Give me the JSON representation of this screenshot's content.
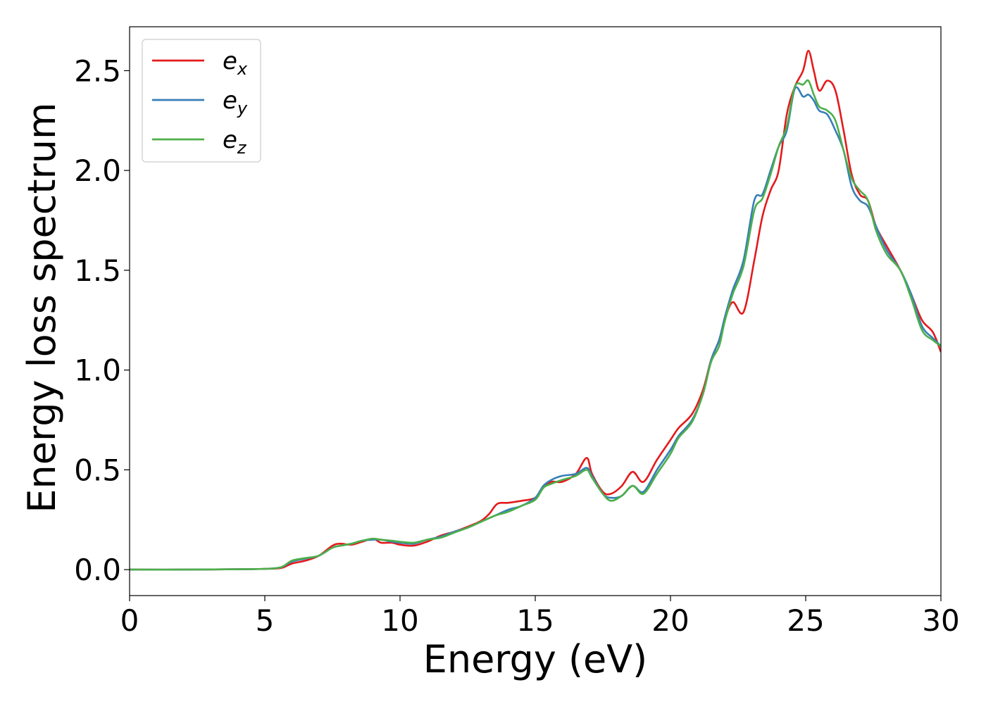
{
  "chart_data": {
    "type": "line",
    "title": "",
    "xlabel": "Energy (eV)",
    "ylabel": "Energy loss spectrum",
    "xlim": [
      0,
      30
    ],
    "ylim": [
      -0.13,
      2.72
    ],
    "xticks": [
      0,
      5,
      10,
      15,
      20,
      25,
      30
    ],
    "xtick_labels": [
      "0",
      "5",
      "10",
      "15",
      "20",
      "25",
      "30"
    ],
    "yticks": [
      0.0,
      0.5,
      1.0,
      1.5,
      2.0,
      2.5
    ],
    "ytick_labels": [
      "0.0",
      "0.5",
      "1.0",
      "1.5",
      "2.0",
      "2.5"
    ],
    "grid": false,
    "legend_position": "top-left",
    "series": [
      {
        "name": "e",
        "subscript": "x",
        "color": "#e41a1c",
        "points": [
          [
            0,
            0
          ],
          [
            2,
            0
          ],
          [
            4,
            0.002
          ],
          [
            5,
            0.004
          ],
          [
            5.6,
            0.008
          ],
          [
            6,
            0.03
          ],
          [
            6.5,
            0.045
          ],
          [
            7,
            0.07
          ],
          [
            7.5,
            0.12
          ],
          [
            7.8,
            0.13
          ],
          [
            8.2,
            0.125
          ],
          [
            8.6,
            0.14
          ],
          [
            9,
            0.155
          ],
          [
            9.3,
            0.135
          ],
          [
            9.7,
            0.135
          ],
          [
            10,
            0.125
          ],
          [
            10.5,
            0.12
          ],
          [
            11,
            0.14
          ],
          [
            11.5,
            0.17
          ],
          [
            12,
            0.19
          ],
          [
            12.5,
            0.215
          ],
          [
            13,
            0.245
          ],
          [
            13.3,
            0.28
          ],
          [
            13.6,
            0.33
          ],
          [
            14,
            0.335
          ],
          [
            14.5,
            0.345
          ],
          [
            15,
            0.36
          ],
          [
            15.3,
            0.41
          ],
          [
            15.6,
            0.44
          ],
          [
            16,
            0.44
          ],
          [
            16.5,
            0.48
          ],
          [
            16.9,
            0.56
          ],
          [
            17.1,
            0.48
          ],
          [
            17.5,
            0.39
          ],
          [
            17.8,
            0.38
          ],
          [
            18.2,
            0.42
          ],
          [
            18.6,
            0.49
          ],
          [
            19,
            0.44
          ],
          [
            19.5,
            0.55
          ],
          [
            20,
            0.65
          ],
          [
            20.3,
            0.71
          ],
          [
            20.8,
            0.78
          ],
          [
            21.2,
            0.9
          ],
          [
            21.5,
            1.05
          ],
          [
            21.8,
            1.15
          ],
          [
            22,
            1.25
          ],
          [
            22.3,
            1.34
          ],
          [
            22.7,
            1.29
          ],
          [
            23.1,
            1.55
          ],
          [
            23.4,
            1.77
          ],
          [
            23.7,
            1.9
          ],
          [
            24,
            2.0
          ],
          [
            24.3,
            2.28
          ],
          [
            24.6,
            2.42
          ],
          [
            24.9,
            2.5
          ],
          [
            25.1,
            2.6
          ],
          [
            25.3,
            2.5
          ],
          [
            25.5,
            2.4
          ],
          [
            25.8,
            2.45
          ],
          [
            26.1,
            2.4
          ],
          [
            26.4,
            2.2
          ],
          [
            26.7,
            1.98
          ],
          [
            27,
            1.88
          ],
          [
            27.3,
            1.85
          ],
          [
            27.6,
            1.72
          ],
          [
            28,
            1.62
          ],
          [
            28.5,
            1.5
          ],
          [
            28.9,
            1.38
          ],
          [
            29.3,
            1.25
          ],
          [
            29.7,
            1.19
          ],
          [
            30,
            1.09
          ]
        ]
      },
      {
        "name": "e",
        "subscript": "y",
        "color": "#377eb8",
        "points": [
          [
            0,
            0
          ],
          [
            2,
            0
          ],
          [
            4,
            0.002
          ],
          [
            5,
            0.004
          ],
          [
            5.6,
            0.012
          ],
          [
            6,
            0.04
          ],
          [
            6.5,
            0.055
          ],
          [
            7,
            0.07
          ],
          [
            7.5,
            0.11
          ],
          [
            7.8,
            0.12
          ],
          [
            8.2,
            0.13
          ],
          [
            8.6,
            0.145
          ],
          [
            9,
            0.15
          ],
          [
            9.3,
            0.15
          ],
          [
            9.7,
            0.14
          ],
          [
            10,
            0.135
          ],
          [
            10.5,
            0.13
          ],
          [
            11,
            0.15
          ],
          [
            11.5,
            0.165
          ],
          [
            12,
            0.19
          ],
          [
            12.5,
            0.21
          ],
          [
            13,
            0.24
          ],
          [
            13.5,
            0.27
          ],
          [
            14,
            0.3
          ],
          [
            14.5,
            0.32
          ],
          [
            15,
            0.36
          ],
          [
            15.3,
            0.42
          ],
          [
            15.6,
            0.45
          ],
          [
            16,
            0.47
          ],
          [
            16.5,
            0.48
          ],
          [
            16.9,
            0.51
          ],
          [
            17.1,
            0.47
          ],
          [
            17.5,
            0.38
          ],
          [
            17.8,
            0.36
          ],
          [
            18.2,
            0.37
          ],
          [
            18.6,
            0.42
          ],
          [
            19,
            0.39
          ],
          [
            19.5,
            0.5
          ],
          [
            20,
            0.6
          ],
          [
            20.3,
            0.67
          ],
          [
            20.8,
            0.75
          ],
          [
            21.2,
            0.88
          ],
          [
            21.5,
            1.05
          ],
          [
            21.8,
            1.15
          ],
          [
            22,
            1.26
          ],
          [
            22.3,
            1.4
          ],
          [
            22.7,
            1.55
          ],
          [
            23.1,
            1.85
          ],
          [
            23.4,
            1.88
          ],
          [
            23.7,
            2.0
          ],
          [
            24,
            2.12
          ],
          [
            24.3,
            2.2
          ],
          [
            24.6,
            2.41
          ],
          [
            24.9,
            2.37
          ],
          [
            25.1,
            2.38
          ],
          [
            25.3,
            2.35
          ],
          [
            25.5,
            2.3
          ],
          [
            25.8,
            2.28
          ],
          [
            26.1,
            2.2
          ],
          [
            26.4,
            2.1
          ],
          [
            26.7,
            1.92
          ],
          [
            27,
            1.85
          ],
          [
            27.3,
            1.82
          ],
          [
            27.6,
            1.72
          ],
          [
            28,
            1.6
          ],
          [
            28.5,
            1.5
          ],
          [
            28.9,
            1.38
          ],
          [
            29.3,
            1.22
          ],
          [
            29.7,
            1.16
          ],
          [
            30,
            1.12
          ]
        ]
      },
      {
        "name": "e",
        "subscript": "z",
        "color": "#4daf4a",
        "points": [
          [
            0,
            0
          ],
          [
            2,
            0
          ],
          [
            4,
            0.002
          ],
          [
            5,
            0.004
          ],
          [
            5.6,
            0.012
          ],
          [
            6,
            0.045
          ],
          [
            6.5,
            0.058
          ],
          [
            7,
            0.07
          ],
          [
            7.5,
            0.11
          ],
          [
            7.8,
            0.12
          ],
          [
            8.2,
            0.13
          ],
          [
            8.6,
            0.145
          ],
          [
            9,
            0.155
          ],
          [
            9.3,
            0.15
          ],
          [
            9.7,
            0.145
          ],
          [
            10,
            0.14
          ],
          [
            10.5,
            0.135
          ],
          [
            11,
            0.15
          ],
          [
            11.5,
            0.16
          ],
          [
            12,
            0.185
          ],
          [
            12.5,
            0.21
          ],
          [
            13,
            0.24
          ],
          [
            13.5,
            0.27
          ],
          [
            14,
            0.29
          ],
          [
            14.5,
            0.32
          ],
          [
            15,
            0.35
          ],
          [
            15.3,
            0.41
          ],
          [
            15.6,
            0.43
          ],
          [
            16,
            0.45
          ],
          [
            16.5,
            0.47
          ],
          [
            16.9,
            0.5
          ],
          [
            17.1,
            0.46
          ],
          [
            17.5,
            0.38
          ],
          [
            17.8,
            0.345
          ],
          [
            18.2,
            0.37
          ],
          [
            18.6,
            0.42
          ],
          [
            19,
            0.38
          ],
          [
            19.5,
            0.48
          ],
          [
            20,
            0.58
          ],
          [
            20.3,
            0.66
          ],
          [
            20.8,
            0.74
          ],
          [
            21.2,
            0.88
          ],
          [
            21.5,
            1.04
          ],
          [
            21.8,
            1.12
          ],
          [
            22,
            1.24
          ],
          [
            22.3,
            1.38
          ],
          [
            22.7,
            1.52
          ],
          [
            23.1,
            1.8
          ],
          [
            23.4,
            1.86
          ],
          [
            23.7,
            1.98
          ],
          [
            24,
            2.12
          ],
          [
            24.3,
            2.22
          ],
          [
            24.6,
            2.42
          ],
          [
            24.9,
            2.43
          ],
          [
            25.1,
            2.45
          ],
          [
            25.3,
            2.38
          ],
          [
            25.5,
            2.32
          ],
          [
            25.8,
            2.3
          ],
          [
            26.1,
            2.25
          ],
          [
            26.4,
            2.1
          ],
          [
            26.7,
            1.96
          ],
          [
            27,
            1.9
          ],
          [
            27.3,
            1.85
          ],
          [
            27.6,
            1.7
          ],
          [
            28,
            1.58
          ],
          [
            28.5,
            1.5
          ],
          [
            28.9,
            1.36
          ],
          [
            29.3,
            1.2
          ],
          [
            29.7,
            1.15
          ],
          [
            30,
            1.12
          ]
        ]
      }
    ]
  }
}
